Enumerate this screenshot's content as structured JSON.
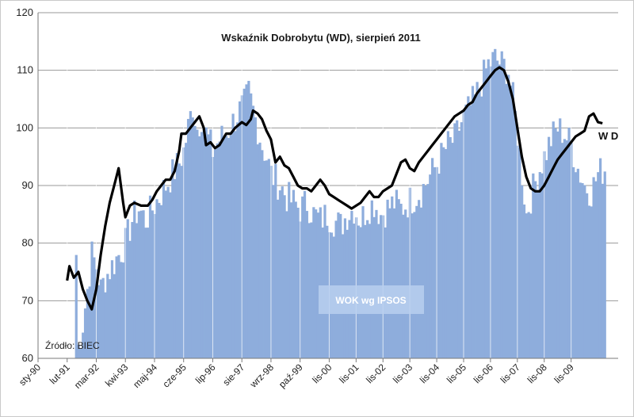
{
  "chart_data": {
    "type": "bar+line",
    "title": "Wskaźnik Dobrobytu (WD), sierpień 2011",
    "source": "Źródło: BIEC",
    "ylim": [
      60,
      120
    ],
    "yticks": [
      60,
      70,
      80,
      90,
      100,
      110,
      120
    ],
    "grid": "horizontal",
    "x_tick_labels": [
      "sty-90",
      "lut-91",
      "mar-92",
      "kwi-93",
      "maj-94",
      "cze-95",
      "lip-96",
      "sie-97",
      "wrz-98",
      "paź-99",
      "lis-00",
      "lis-01",
      "lis-02",
      "lis-03",
      "lis-04",
      "lis-05",
      "lis-06",
      "lis-07",
      "lis-08",
      "lis-09"
    ],
    "x_tick_index": [
      0,
      13,
      26,
      39,
      52,
      65,
      78,
      91,
      104,
      117,
      130,
      142,
      154,
      166,
      178,
      190,
      202,
      214,
      226,
      238
    ],
    "n_months": 260,
    "series": [
      {
        "name": "WOK wg IPSOS",
        "type": "bar",
        "color": "#8eaddc",
        "points": [
          [
            0,
            null
          ],
          [
            16,
            null
          ],
          [
            17,
            78
          ],
          [
            18,
            62
          ],
          [
            20,
            66
          ],
          [
            22,
            72
          ],
          [
            24,
            78
          ],
          [
            26,
            76
          ],
          [
            28,
            72
          ],
          [
            30,
            74
          ],
          [
            33,
            76
          ],
          [
            36,
            78
          ],
          [
            39,
            80
          ],
          [
            42,
            84
          ],
          [
            45,
            86
          ],
          [
            48,
            84
          ],
          [
            51,
            86
          ],
          [
            54,
            88
          ],
          [
            57,
            90
          ],
          [
            60,
            92
          ],
          [
            63,
            94
          ],
          [
            65,
            96
          ],
          [
            67,
            100
          ],
          [
            69,
            104
          ],
          [
            71,
            100
          ],
          [
            73,
            102
          ],
          [
            75,
            99
          ],
          [
            78,
            96
          ],
          [
            81,
            98
          ],
          [
            84,
            99
          ],
          [
            87,
            101
          ],
          [
            90,
            103
          ],
          [
            92,
            104
          ],
          [
            94,
            106
          ],
          [
            96,
            103
          ],
          [
            98,
            100
          ],
          [
            100,
            97
          ],
          [
            102,
            95
          ],
          [
            104,
            92
          ],
          [
            106,
            91
          ],
          [
            108,
            90
          ],
          [
            111,
            88
          ],
          [
            114,
            87
          ],
          [
            117,
            86
          ],
          [
            120,
            87
          ],
          [
            123,
            85
          ],
          [
            126,
            84
          ],
          [
            129,
            85
          ],
          [
            132,
            84
          ],
          [
            135,
            83
          ],
          [
            138,
            85
          ],
          [
            141,
            86
          ],
          [
            144,
            84
          ],
          [
            147,
            86
          ],
          [
            150,
            87
          ],
          [
            153,
            85
          ],
          [
            156,
            86
          ],
          [
            159,
            87
          ],
          [
            162,
            86
          ],
          [
            165,
            87
          ],
          [
            168,
            88
          ],
          [
            171,
            89
          ],
          [
            174,
            91
          ],
          [
            177,
            93
          ],
          [
            180,
            95
          ],
          [
            183,
            97
          ],
          [
            186,
            98
          ],
          [
            189,
            101
          ],
          [
            192,
            103
          ],
          [
            195,
            105
          ],
          [
            198,
            108
          ],
          [
            201,
            111
          ],
          [
            204,
            112
          ],
          [
            207,
            111
          ],
          [
            210,
            110
          ],
          [
            212,
            105
          ],
          [
            214,
            99
          ],
          [
            216,
            92
          ],
          [
            218,
            85
          ],
          [
            220,
            88
          ],
          [
            223,
            92
          ],
          [
            226,
            95
          ],
          [
            229,
            98
          ],
          [
            232,
            100
          ],
          [
            235,
            99
          ],
          [
            238,
            97
          ],
          [
            241,
            93
          ],
          [
            244,
            90
          ],
          [
            247,
            89
          ],
          [
            250,
            92
          ],
          [
            253,
            93
          ]
        ]
      },
      {
        "name": "W D",
        "type": "line",
        "color": "#000000",
        "points": [
          [
            13,
            73.5
          ],
          [
            14,
            76
          ],
          [
            16,
            74
          ],
          [
            18,
            75
          ],
          [
            20,
            72
          ],
          [
            22,
            70
          ],
          [
            24,
            68.5
          ],
          [
            26,
            72
          ],
          [
            28,
            78
          ],
          [
            30,
            83
          ],
          [
            32,
            87
          ],
          [
            34,
            90
          ],
          [
            36,
            93
          ],
          [
            38,
            87
          ],
          [
            39,
            84.5
          ],
          [
            41,
            86.5
          ],
          [
            43,
            87
          ],
          [
            46,
            86.5
          ],
          [
            49,
            86.5
          ],
          [
            51,
            87.5
          ],
          [
            53,
            89
          ],
          [
            55,
            90
          ],
          [
            57,
            91
          ],
          [
            59,
            91
          ],
          [
            61,
            92.5
          ],
          [
            63,
            96
          ],
          [
            64,
            99
          ],
          [
            66,
            99
          ],
          [
            68,
            100
          ],
          [
            70,
            101
          ],
          [
            72,
            102
          ],
          [
            74,
            100
          ],
          [
            75,
            97
          ],
          [
            77,
            97.5
          ],
          [
            79,
            96.5
          ],
          [
            81,
            97
          ],
          [
            84,
            99
          ],
          [
            86,
            99
          ],
          [
            88,
            100
          ],
          [
            91,
            101
          ],
          [
            93,
            100.5
          ],
          [
            95,
            101.5
          ],
          [
            96,
            103
          ],
          [
            98,
            102.5
          ],
          [
            100,
            101.5
          ],
          [
            102,
            99.5
          ],
          [
            104,
            98
          ],
          [
            106,
            94
          ],
          [
            108,
            95
          ],
          [
            110,
            93.5
          ],
          [
            112,
            93
          ],
          [
            114,
            91.5
          ],
          [
            116,
            90
          ],
          [
            118,
            89.5
          ],
          [
            120,
            89.5
          ],
          [
            122,
            89
          ],
          [
            124,
            90
          ],
          [
            126,
            91
          ],
          [
            128,
            90
          ],
          [
            130,
            88.5
          ],
          [
            132,
            88
          ],
          [
            134,
            87.5
          ],
          [
            136,
            87
          ],
          [
            138,
            86.5
          ],
          [
            140,
            86
          ],
          [
            142,
            86.5
          ],
          [
            144,
            87
          ],
          [
            146,
            88
          ],
          [
            148,
            89
          ],
          [
            150,
            88
          ],
          [
            152,
            88
          ],
          [
            154,
            89
          ],
          [
            156,
            89.5
          ],
          [
            158,
            90
          ],
          [
            160,
            92
          ],
          [
            162,
            94
          ],
          [
            164,
            94.5
          ],
          [
            166,
            93
          ],
          [
            168,
            92.5
          ],
          [
            170,
            94
          ],
          [
            172,
            95
          ],
          [
            174,
            96
          ],
          [
            176,
            97
          ],
          [
            178,
            98
          ],
          [
            180,
            99
          ],
          [
            182,
            100
          ],
          [
            184,
            101
          ],
          [
            186,
            102
          ],
          [
            188,
            102.5
          ],
          [
            190,
            103
          ],
          [
            192,
            104
          ],
          [
            194,
            104.5
          ],
          [
            196,
            106
          ],
          [
            198,
            107
          ],
          [
            200,
            108
          ],
          [
            202,
            109
          ],
          [
            204,
            110
          ],
          [
            206,
            110.5
          ],
          [
            208,
            110
          ],
          [
            210,
            108
          ],
          [
            212,
            105
          ],
          [
            214,
            100
          ],
          [
            216,
            95
          ],
          [
            218,
            91.5
          ],
          [
            220,
            89.5
          ],
          [
            222,
            89
          ],
          [
            224,
            89
          ],
          [
            226,
            90
          ],
          [
            228,
            91.5
          ],
          [
            230,
            93
          ],
          [
            232,
            94.5
          ],
          [
            234,
            95.5
          ],
          [
            236,
            96.5
          ],
          [
            238,
            97.5
          ],
          [
            240,
            98.5
          ],
          [
            242,
            99
          ],
          [
            244,
            99.5
          ],
          [
            246,
            102
          ],
          [
            248,
            102.5
          ],
          [
            250,
            101
          ],
          [
            252,
            100.8
          ]
        ]
      }
    ]
  }
}
